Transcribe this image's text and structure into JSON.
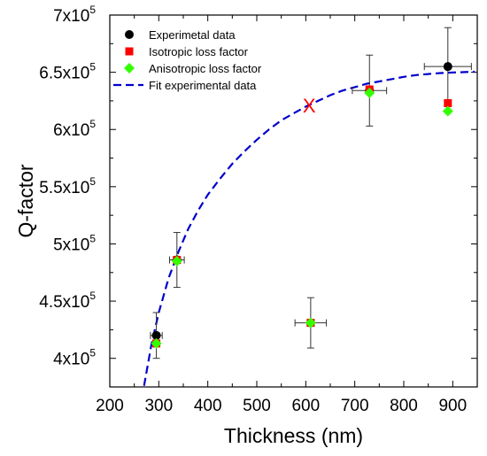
{
  "chart_data": {
    "type": "scatter",
    "title": "",
    "xlabel": "Thickness (nm)",
    "ylabel": "Q-factor",
    "xlim": [
      200,
      950
    ],
    "ylim": [
      375000,
      700000
    ],
    "x_ticks": [
      200,
      300,
      400,
      500,
      600,
      700,
      800,
      900
    ],
    "x_tick_labels": [
      "200",
      "300",
      "400",
      "500",
      "600",
      "700",
      "800",
      "900"
    ],
    "y_ticks": [
      400000,
      450000,
      500000,
      550000,
      600000,
      650000,
      700000
    ],
    "y_tick_labels": [
      {
        "base": "4x10",
        "exp": "5"
      },
      {
        "base": "4.5x10",
        "exp": "5"
      },
      {
        "base": "5x10",
        "exp": "5"
      },
      {
        "base": "5.5x10",
        "exp": "5"
      },
      {
        "base": "6x10",
        "exp": "5"
      },
      {
        "base": "6.5x10",
        "exp": "5"
      },
      {
        "base": "7x10",
        "exp": "5"
      }
    ],
    "legend_position": "top-left",
    "series": [
      {
        "name": "Experimetal data",
        "marker": "circle",
        "color": "#000000",
        "points": [
          {
            "x": 295,
            "y": 420000,
            "xerr": 12,
            "yerr": 20000
          },
          {
            "x": 337,
            "y": 486000,
            "xerr": 15,
            "yerr": 24000
          },
          {
            "x": 610,
            "y": 431000,
            "xerr": 32,
            "yerr": 22000
          },
          {
            "x": 730,
            "y": 634000,
            "xerr": 35,
            "yerr": 31000
          },
          {
            "x": 890,
            "y": 655000,
            "xerr": 48,
            "yerr": 34000
          }
        ]
      },
      {
        "name": "Isotropic loss factor",
        "marker": "square",
        "color": "#ff0000",
        "points": [
          {
            "x": 295,
            "y": 413000
          },
          {
            "x": 337,
            "y": 486000
          },
          {
            "x": 610,
            "y": 431000
          },
          {
            "x": 730,
            "y": 635000
          },
          {
            "x": 890,
            "y": 623000
          }
        ]
      },
      {
        "name": "Anisotropic loss factor",
        "marker": "diamond",
        "color": "#33ff00",
        "points": [
          {
            "x": 295,
            "y": 413000
          },
          {
            "x": 337,
            "y": 485000
          },
          {
            "x": 610,
            "y": 431000
          },
          {
            "x": 730,
            "y": 632000
          },
          {
            "x": 890,
            "y": 616000
          }
        ]
      },
      {
        "name": "Fit experimental data",
        "line": "dashed",
        "color": "#0000cc",
        "points": [
          {
            "x": 270,
            "y": 376000
          },
          {
            "x": 285,
            "y": 412000
          },
          {
            "x": 300,
            "y": 440000
          },
          {
            "x": 320,
            "y": 470000
          },
          {
            "x": 340,
            "y": 493000
          },
          {
            "x": 360,
            "y": 513000
          },
          {
            "x": 380,
            "y": 529000
          },
          {
            "x": 400,
            "y": 543000
          },
          {
            "x": 425,
            "y": 557000
          },
          {
            "x": 450,
            "y": 570000
          },
          {
            "x": 475,
            "y": 581000
          },
          {
            "x": 500,
            "y": 591000
          },
          {
            "x": 525,
            "y": 600000
          },
          {
            "x": 550,
            "y": 608000
          },
          {
            "x": 575,
            "y": 614000
          },
          {
            "x": 600,
            "y": 620000
          },
          {
            "x": 625,
            "y": 625000
          },
          {
            "x": 650,
            "y": 630000
          },
          {
            "x": 675,
            "y": 634000
          },
          {
            "x": 700,
            "y": 637000
          },
          {
            "x": 725,
            "y": 640000
          },
          {
            "x": 750,
            "y": 642000
          },
          {
            "x": 775,
            "y": 644000
          },
          {
            "x": 800,
            "y": 646000
          },
          {
            "x": 825,
            "y": 647500
          },
          {
            "x": 850,
            "y": 648500
          },
          {
            "x": 875,
            "y": 649300
          },
          {
            "x": 900,
            "y": 649800
          },
          {
            "x": 925,
            "y": 650200
          },
          {
            "x": 945,
            "y": 650500
          }
        ]
      }
    ],
    "annotations": [
      {
        "text": "X",
        "x": 607,
        "y": 621000,
        "color": "#ff0000"
      }
    ]
  }
}
